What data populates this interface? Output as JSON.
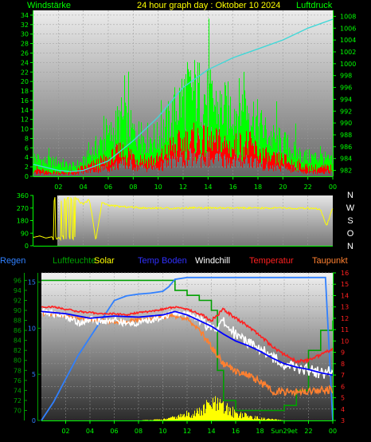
{
  "header": {
    "left_label": "Windstärke",
    "title": "24 hour graph day : Oktober 10 2024",
    "right_label": "Luftdruck"
  },
  "legend_bottom": {
    "regen": "Regen",
    "luftfeuchte": "Luftfeuchte",
    "solar": "Solar",
    "temp_boden": "Temp Boden",
    "windchill": "Windchill",
    "temperatur": "Temperatur",
    "taupunkt": "Taupunkt"
  },
  "compass": [
    "N",
    "W",
    "S",
    "O",
    "N"
  ],
  "colors": {
    "wind_gust": "#00ff00",
    "wind_avg": "#ff0000",
    "pressure": "#40d8d8",
    "wind_dir": "#ffff00",
    "rain": "#3080ff",
    "humidity": "#00a000",
    "solar": "#ffff00",
    "temp_ground": "#0000ff",
    "windchill": "#ffffff",
    "temperature": "#ff2020",
    "dewpoint": "#ff8030",
    "axis": "#00ff00"
  },
  "x_ticks_top": [
    "02",
    "04",
    "06",
    "08",
    "10",
    "12",
    "14",
    "16",
    "18",
    "20",
    "22",
    "00"
  ],
  "x_ticks_bottom": [
    "02",
    "04",
    "06",
    "08",
    "10",
    "12",
    "14",
    "16",
    "18",
    "Sun29et",
    "22",
    "00"
  ],
  "chart_data": [
    {
      "type": "line",
      "title": "Windstärke / Luftdruck",
      "xlim": [
        0,
        24
      ],
      "y_left": {
        "label": "Windstärke",
        "lim": [
          0,
          35
        ],
        "ticks": [
          0,
          2,
          4,
          6,
          8,
          10,
          12,
          14,
          16,
          18,
          20,
          22,
          24,
          26,
          28,
          30,
          32,
          34
        ]
      },
      "y_right": {
        "label": "Luftdruck",
        "lim": [
          981,
          1009
        ],
        "ticks": [
          982,
          984,
          986,
          988,
          990,
          992,
          994,
          996,
          998,
          1000,
          1002,
          1004,
          1006,
          1008
        ]
      },
      "series": [
        {
          "axis": "left",
          "x": [
            0,
            1,
            2,
            3,
            4,
            5,
            6,
            7,
            8,
            9,
            10,
            11,
            12,
            13,
            14,
            15,
            16,
            17,
            18,
            19,
            20,
            21,
            22,
            23,
            24
          ],
          "values": [
            4,
            3,
            3,
            2,
            3,
            6,
            8,
            12,
            9,
            8,
            8,
            12,
            17,
            18,
            16,
            14,
            14,
            15,
            11,
            8,
            7,
            5,
            4,
            4,
            3
          ]
        },
        {
          "axis": "left",
          "x": [
            0,
            1,
            2,
            3,
            4,
            5,
            6,
            7,
            8,
            9,
            10,
            11,
            12,
            13,
            14,
            15,
            16,
            17,
            18,
            19,
            20,
            21,
            22,
            23,
            24
          ],
          "values": [
            2,
            1,
            1,
            1,
            2,
            3,
            4,
            6,
            5,
            4,
            4,
            7,
            8,
            9,
            8,
            8,
            7,
            8,
            6,
            4,
            4,
            3,
            2,
            2,
            2
          ]
        },
        {
          "axis": "right",
          "x": [
            0,
            2,
            3,
            4,
            6,
            8,
            10,
            12,
            14,
            16,
            18,
            20,
            22,
            24
          ],
          "values": [
            983,
            982,
            981.8,
            982,
            983.6,
            987,
            991,
            996,
            999,
            1001,
            1002.5,
            1004,
            1006,
            1007.5
          ]
        }
      ]
    },
    {
      "type": "scatter",
      "title": "Windrichtung",
      "xlim": [
        0,
        24
      ],
      "y": {
        "lim": [
          0,
          360
        ],
        "ticks": [
          0,
          90,
          180,
          270,
          360
        ]
      },
      "series": [
        {
          "x": [
            0,
            0.5,
            1,
            1.5,
            1.6,
            2,
            2.5,
            3,
            3.3,
            3.5,
            4,
            4.5,
            5,
            5.5,
            6,
            7,
            8,
            9,
            10,
            11,
            12,
            13,
            14,
            15,
            16,
            17,
            18,
            19,
            20,
            21,
            22,
            23,
            23.5,
            24
          ],
          "values": [
            60,
            70,
            55,
            65,
            40,
            330,
            30,
            340,
            60,
            320,
            300,
            330,
            40,
            310,
            290,
            280,
            275,
            270,
            270,
            268,
            270,
            272,
            270,
            270,
            268,
            270,
            268,
            270,
            270,
            265,
            268,
            260,
            140,
            270
          ]
        }
      ]
    },
    {
      "type": "line",
      "title": "Temperatur / Luftfeuchte / Regen",
      "xlim": [
        0,
        24
      ],
      "y_rain": {
        "label": "Regen",
        "lim": [
          0,
          16
        ],
        "ticks": [
          0,
          5,
          10,
          15
        ]
      },
      "y_humidity": {
        "label": "Luftfeuchte",
        "lim": [
          68,
          97.5
        ],
        "ticks": [
          70,
          72,
          74,
          76,
          78,
          80,
          82,
          84,
          86,
          88,
          90,
          92,
          94,
          96
        ]
      },
      "y_temp": {
        "label": "Temperatur",
        "lim": [
          3,
          16
        ],
        "ticks": [
          3,
          4,
          5,
          6,
          7,
          8,
          9,
          10,
          11,
          12,
          13,
          14,
          15,
          16
        ]
      },
      "series": [
        {
          "name": "Regen",
          "axis": "rain",
          "x": [
            0,
            1,
            2,
            3,
            4,
            5,
            6,
            7,
            8,
            9,
            10,
            10.5,
            11,
            12,
            13,
            14,
            15,
            16,
            17,
            18,
            19,
            20,
            21,
            22,
            23,
            23.4,
            24
          ],
          "values": [
            0,
            2,
            4.5,
            7,
            9,
            11,
            13,
            13.5,
            13.7,
            13.8,
            14,
            14.5,
            15.3,
            15.5,
            15.5,
            15.5,
            15.5,
            15.5,
            15.5,
            15.5,
            15.5,
            15.5,
            15.5,
            15.5,
            15.5,
            15.5,
            0
          ]
        },
        {
          "name": "Luftfeuchte",
          "axis": "humidity",
          "x": [
            0,
            1,
            2,
            3,
            4,
            5,
            6,
            7,
            8,
            9,
            10,
            11,
            12,
            13,
            14,
            14.5,
            15,
            16,
            17,
            18,
            19,
            20,
            21,
            22,
            23,
            24
          ],
          "values": [
            96,
            96,
            96,
            96,
            96,
            96,
            96,
            96,
            96,
            96,
            96,
            94,
            93,
            92,
            90,
            78,
            72,
            70,
            70,
            70,
            70,
            71,
            74,
            82,
            86,
            88
          ]
        },
        {
          "name": "Solar",
          "axis": "temp",
          "x": [
            0,
            8,
            9,
            10,
            11,
            12,
            13,
            14,
            15,
            16,
            17,
            18,
            19,
            20,
            24
          ],
          "values": [
            3,
            3,
            3.05,
            3.1,
            3.3,
            3.6,
            3.8,
            4.6,
            4.2,
            3.7,
            3.4,
            3.2,
            3.1,
            3,
            3
          ]
        },
        {
          "name": "Temp Boden",
          "axis": "temp",
          "x": [
            0,
            2,
            4,
            6,
            8,
            10,
            11,
            12,
            13,
            14,
            15,
            16,
            17,
            18,
            19,
            20,
            21,
            22,
            23,
            24
          ],
          "values": [
            12.6,
            12.4,
            12,
            12.2,
            12.1,
            12.3,
            12.6,
            12.3,
            11.8,
            11.3,
            10.6,
            10,
            9.6,
            9.1,
            8.5,
            8,
            7.7,
            7.5,
            7.2,
            7.0
          ]
        },
        {
          "name": "Windchill",
          "axis": "temp",
          "x": [
            0,
            2,
            3,
            4,
            5,
            6,
            7,
            8,
            9,
            10,
            11,
            12,
            13,
            14,
            15,
            16,
            17,
            18,
            19,
            20,
            21,
            22,
            23,
            24
          ],
          "values": [
            12.6,
            12.2,
            11.6,
            11.9,
            11.7,
            11.9,
            11.5,
            11.6,
            11.8,
            12.2,
            12.4,
            12.4,
            12,
            11,
            11.6,
            10.6,
            10,
            9.4,
            8.6,
            8,
            7.6,
            7.5,
            7.2,
            7.3
          ]
        },
        {
          "name": "Temperatur",
          "axis": "temp",
          "x": [
            0,
            1,
            2,
            3,
            4,
            5,
            6,
            7,
            8,
            9,
            10,
            11,
            12,
            13,
            14,
            15,
            16,
            17,
            18,
            19,
            20,
            21,
            22,
            23,
            24
          ],
          "values": [
            13,
            13,
            12.8,
            12.6,
            12.5,
            12.4,
            12.4,
            12.3,
            12.5,
            12.6,
            12.8,
            13,
            12.8,
            12.4,
            11.8,
            12.8,
            12,
            11.3,
            10.5,
            9.5,
            8.8,
            8.2,
            8.3,
            8.8,
            9.3
          ]
        },
        {
          "name": "Taupunkt",
          "axis": "temp",
          "x": [
            0,
            1,
            2,
            3,
            4,
            5,
            6,
            7,
            8,
            9,
            10,
            11,
            12,
            13,
            14,
            15,
            16,
            17,
            18,
            19,
            20,
            21,
            22,
            23,
            24
          ],
          "values": [
            12.4,
            12.4,
            12.2,
            12,
            11.9,
            11.8,
            11.7,
            11.7,
            11.9,
            12,
            12.1,
            12.2,
            11.9,
            11,
            9.5,
            8,
            7.4,
            7,
            6.4,
            5.6,
            5.5,
            5.5,
            5.6,
            5.7,
            5.7
          ]
        }
      ]
    }
  ]
}
